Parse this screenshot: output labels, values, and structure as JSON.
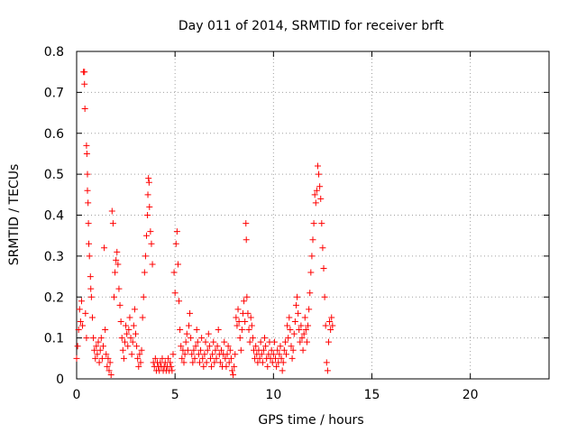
{
  "chart_data": {
    "type": "scatter",
    "title": "Day 011 of 2014, SRMTID for receiver brft",
    "xlabel": "GPS time / hours",
    "ylabel": "SRMTID / TECUs",
    "xlim": [
      0,
      24
    ],
    "ylim": [
      0,
      0.8
    ],
    "xticks": [
      0,
      5,
      10,
      15,
      20
    ],
    "yticks": [
      0,
      0.1,
      0.2,
      0.3,
      0.4,
      0.5,
      0.6,
      0.7,
      0.8
    ],
    "xtick_labels": [
      "0",
      "5",
      "10",
      "15",
      "20"
    ],
    "ytick_labels": [
      "0",
      "0.1",
      "0.2",
      "0.3",
      "0.4",
      "0.5",
      "0.6",
      "0.7",
      "0.8"
    ],
    "grid": true,
    "marker": "+",
    "marker_color": "#ff0000",
    "series": [
      {
        "name": "brft",
        "points": [
          [
            0.0,
            0.05
          ],
          [
            0.05,
            0.08
          ],
          [
            0.1,
            0.12
          ],
          [
            0.15,
            0.17
          ],
          [
            0.2,
            0.14
          ],
          [
            0.25,
            0.19
          ],
          [
            0.3,
            0.13
          ],
          [
            0.35,
            0.75
          ],
          [
            0.4,
            0.75
          ],
          [
            0.4,
            0.72
          ],
          [
            0.42,
            0.66
          ],
          [
            0.45,
            0.16
          ],
          [
            0.5,
            0.1
          ],
          [
            0.5,
            0.57
          ],
          [
            0.52,
            0.55
          ],
          [
            0.55,
            0.5
          ],
          [
            0.55,
            0.46
          ],
          [
            0.58,
            0.43
          ],
          [
            0.6,
            0.38
          ],
          [
            0.62,
            0.33
          ],
          [
            0.65,
            0.3
          ],
          [
            0.7,
            0.25
          ],
          [
            0.72,
            0.22
          ],
          [
            0.75,
            0.2
          ],
          [
            0.8,
            0.15
          ],
          [
            0.85,
            0.1
          ],
          [
            0.9,
            0.07
          ],
          [
            0.95,
            0.05
          ],
          [
            1.0,
            0.08
          ],
          [
            1.05,
            0.06
          ],
          [
            1.1,
            0.09
          ],
          [
            1.15,
            0.04
          ],
          [
            1.2,
            0.07
          ],
          [
            1.25,
            0.1
          ],
          [
            1.3,
            0.05
          ],
          [
            1.35,
            0.08
          ],
          [
            1.4,
            0.32
          ],
          [
            1.45,
            0.12
          ],
          [
            1.5,
            0.06
          ],
          [
            1.55,
            0.03
          ],
          [
            1.6,
            0.05
          ],
          [
            1.65,
            0.02
          ],
          [
            1.7,
            0.04
          ],
          [
            1.75,
            0.01
          ],
          [
            1.8,
            0.41
          ],
          [
            1.85,
            0.38
          ],
          [
            1.9,
            0.2
          ],
          [
            1.95,
            0.26
          ],
          [
            2.0,
            0.29
          ],
          [
            2.05,
            0.31
          ],
          [
            2.1,
            0.28
          ],
          [
            2.15,
            0.22
          ],
          [
            2.2,
            0.18
          ],
          [
            2.25,
            0.14
          ],
          [
            2.3,
            0.1
          ],
          [
            2.35,
            0.07
          ],
          [
            2.4,
            0.05
          ],
          [
            2.45,
            0.09
          ],
          [
            2.5,
            0.13
          ],
          [
            2.55,
            0.11
          ],
          [
            2.6,
            0.08
          ],
          [
            2.65,
            0.12
          ],
          [
            2.7,
            0.15
          ],
          [
            2.75,
            0.1
          ],
          [
            2.8,
            0.06
          ],
          [
            2.85,
            0.09
          ],
          [
            2.9,
            0.13
          ],
          [
            2.95,
            0.17
          ],
          [
            3.0,
            0.11
          ],
          [
            3.05,
            0.08
          ],
          [
            3.1,
            0.05
          ],
          [
            3.15,
            0.03
          ],
          [
            3.2,
            0.06
          ],
          [
            3.25,
            0.04
          ],
          [
            3.3,
            0.07
          ],
          [
            3.35,
            0.15
          ],
          [
            3.4,
            0.2
          ],
          [
            3.45,
            0.26
          ],
          [
            3.5,
            0.3
          ],
          [
            3.55,
            0.35
          ],
          [
            3.6,
            0.4
          ],
          [
            3.62,
            0.45
          ],
          [
            3.65,
            0.49
          ],
          [
            3.68,
            0.48
          ],
          [
            3.7,
            0.42
          ],
          [
            3.75,
            0.36
          ],
          [
            3.8,
            0.33
          ],
          [
            3.85,
            0.28
          ],
          [
            3.9,
            0.04
          ],
          [
            3.95,
            0.03
          ],
          [
            4.0,
            0.05
          ],
          [
            4.05,
            0.02
          ],
          [
            4.1,
            0.04
          ],
          [
            4.15,
            0.03
          ],
          [
            4.2,
            0.02
          ],
          [
            4.25,
            0.04
          ],
          [
            4.3,
            0.03
          ],
          [
            4.35,
            0.05
          ],
          [
            4.4,
            0.02
          ],
          [
            4.45,
            0.03
          ],
          [
            4.5,
            0.04
          ],
          [
            4.55,
            0.02
          ],
          [
            4.6,
            0.03
          ],
          [
            4.65,
            0.05
          ],
          [
            4.7,
            0.02
          ],
          [
            4.75,
            0.04
          ],
          [
            4.8,
            0.03
          ],
          [
            4.85,
            0.02
          ],
          [
            4.9,
            0.06
          ],
          [
            4.95,
            0.26
          ],
          [
            5.0,
            0.21
          ],
          [
            5.05,
            0.33
          ],
          [
            5.1,
            0.36
          ],
          [
            5.15,
            0.28
          ],
          [
            5.2,
            0.19
          ],
          [
            5.25,
            0.12
          ],
          [
            5.3,
            0.08
          ],
          [
            5.35,
            0.05
          ],
          [
            5.4,
            0.07
          ],
          [
            5.45,
            0.04
          ],
          [
            5.5,
            0.06
          ],
          [
            5.55,
            0.09
          ],
          [
            5.6,
            0.11
          ],
          [
            5.65,
            0.07
          ],
          [
            5.7,
            0.13
          ],
          [
            5.75,
            0.16
          ],
          [
            5.8,
            0.1
          ],
          [
            5.85,
            0.06
          ],
          [
            5.9,
            0.04
          ],
          [
            5.95,
            0.07
          ],
          [
            6.0,
            0.05
          ],
          [
            6.05,
            0.08
          ],
          [
            6.1,
            0.12
          ],
          [
            6.15,
            0.09
          ],
          [
            6.2,
            0.06
          ],
          [
            6.25,
            0.04
          ],
          [
            6.3,
            0.07
          ],
          [
            6.35,
            0.1
          ],
          [
            6.4,
            0.05
          ],
          [
            6.45,
            0.03
          ],
          [
            6.5,
            0.06
          ],
          [
            6.55,
            0.09
          ],
          [
            6.6,
            0.04
          ],
          [
            6.65,
            0.07
          ],
          [
            6.7,
            0.11
          ],
          [
            6.75,
            0.08
          ],
          [
            6.8,
            0.05
          ],
          [
            6.85,
            0.03
          ],
          [
            6.9,
            0.06
          ],
          [
            6.95,
            0.09
          ],
          [
            7.0,
            0.04
          ],
          [
            7.05,
            0.07
          ],
          [
            7.1,
            0.05
          ],
          [
            7.15,
            0.08
          ],
          [
            7.2,
            0.12
          ],
          [
            7.25,
            0.06
          ],
          [
            7.3,
            0.04
          ],
          [
            7.35,
            0.07
          ],
          [
            7.4,
            0.03
          ],
          [
            7.45,
            0.06
          ],
          [
            7.5,
            0.09
          ],
          [
            7.55,
            0.05
          ],
          [
            7.6,
            0.03
          ],
          [
            7.65,
            0.06
          ],
          [
            7.7,
            0.08
          ],
          [
            7.75,
            0.04
          ],
          [
            7.8,
            0.07
          ],
          [
            7.85,
            0.05
          ],
          [
            7.9,
            0.02
          ],
          [
            7.95,
            0.01
          ],
          [
            8.0,
            0.03
          ],
          [
            8.05,
            0.06
          ],
          [
            8.1,
            0.15
          ],
          [
            8.15,
            0.13
          ],
          [
            8.2,
            0.17
          ],
          [
            8.25,
            0.14
          ],
          [
            8.3,
            0.1
          ],
          [
            8.35,
            0.07
          ],
          [
            8.4,
            0.12
          ],
          [
            8.45,
            0.16
          ],
          [
            8.5,
            0.19
          ],
          [
            8.55,
            0.14
          ],
          [
            8.6,
            0.38
          ],
          [
            8.62,
            0.34
          ],
          [
            8.65,
            0.2
          ],
          [
            8.7,
            0.16
          ],
          [
            8.75,
            0.12
          ],
          [
            8.8,
            0.09
          ],
          [
            8.85,
            0.15
          ],
          [
            8.9,
            0.13
          ],
          [
            8.95,
            0.1
          ],
          [
            9.0,
            0.07
          ],
          [
            9.05,
            0.05
          ],
          [
            9.1,
            0.08
          ],
          [
            9.15,
            0.06
          ],
          [
            9.2,
            0.04
          ],
          [
            9.25,
            0.07
          ],
          [
            9.3,
            0.05
          ],
          [
            9.35,
            0.09
          ],
          [
            9.4,
            0.06
          ],
          [
            9.45,
            0.04
          ],
          [
            9.5,
            0.07
          ],
          [
            9.55,
            0.1
          ],
          [
            9.6,
            0.08
          ],
          [
            9.65,
            0.05
          ],
          [
            9.7,
            0.03
          ],
          [
            9.75,
            0.06
          ],
          [
            9.8,
            0.09
          ],
          [
            9.85,
            0.05
          ],
          [
            9.9,
            0.07
          ],
          [
            9.95,
            0.04
          ],
          [
            10.0,
            0.06
          ],
          [
            10.05,
            0.09
          ],
          [
            10.1,
            0.05
          ],
          [
            10.15,
            0.03
          ],
          [
            10.2,
            0.07
          ],
          [
            10.25,
            0.04
          ],
          [
            10.3,
            0.06
          ],
          [
            10.35,
            0.08
          ],
          [
            10.4,
            0.05
          ],
          [
            10.45,
            0.02
          ],
          [
            10.5,
            0.04
          ],
          [
            10.55,
            0.07
          ],
          [
            10.6,
            0.09
          ],
          [
            10.65,
            0.06
          ],
          [
            10.7,
            0.13
          ],
          [
            10.75,
            0.1
          ],
          [
            10.8,
            0.15
          ],
          [
            10.85,
            0.12
          ],
          [
            10.9,
            0.08
          ],
          [
            10.95,
            0.05
          ],
          [
            11.0,
            0.07
          ],
          [
            11.05,
            0.11
          ],
          [
            11.1,
            0.14
          ],
          [
            11.15,
            0.18
          ],
          [
            11.2,
            0.2
          ],
          [
            11.25,
            0.16
          ],
          [
            11.3,
            0.12
          ],
          [
            11.35,
            0.09
          ],
          [
            11.4,
            0.13
          ],
          [
            11.45,
            0.1
          ],
          [
            11.5,
            0.07
          ],
          [
            11.55,
            0.11
          ],
          [
            11.6,
            0.15
          ],
          [
            11.65,
            0.12
          ],
          [
            11.7,
            0.09
          ],
          [
            11.75,
            0.13
          ],
          [
            11.8,
            0.17
          ],
          [
            11.85,
            0.21
          ],
          [
            11.9,
            0.26
          ],
          [
            11.95,
            0.3
          ],
          [
            12.0,
            0.34
          ],
          [
            12.05,
            0.38
          ],
          [
            12.1,
            0.45
          ],
          [
            12.15,
            0.43
          ],
          [
            12.2,
            0.46
          ],
          [
            12.25,
            0.52
          ],
          [
            12.3,
            0.5
          ],
          [
            12.35,
            0.47
          ],
          [
            12.4,
            0.44
          ],
          [
            12.45,
            0.38
          ],
          [
            12.5,
            0.32
          ],
          [
            12.55,
            0.27
          ],
          [
            12.6,
            0.2
          ],
          [
            12.65,
            0.13
          ],
          [
            12.7,
            0.04
          ],
          [
            12.75,
            0.02
          ],
          [
            12.8,
            0.09
          ],
          [
            12.85,
            0.14
          ],
          [
            12.9,
            0.12
          ],
          [
            12.95,
            0.15
          ],
          [
            13.0,
            0.13
          ]
        ]
      }
    ]
  }
}
